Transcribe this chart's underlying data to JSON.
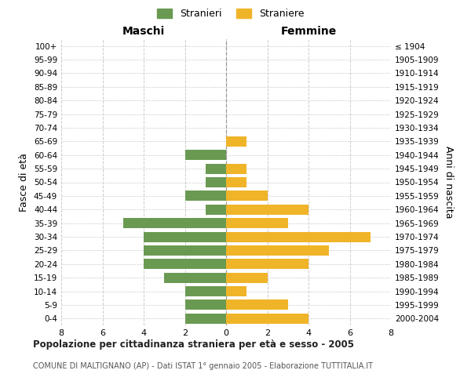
{
  "age_groups": [
    "100+",
    "95-99",
    "90-94",
    "85-89",
    "80-84",
    "75-79",
    "70-74",
    "65-69",
    "60-64",
    "55-59",
    "50-54",
    "45-49",
    "40-44",
    "35-39",
    "30-34",
    "25-29",
    "20-24",
    "15-19",
    "10-14",
    "5-9",
    "0-4"
  ],
  "birth_years": [
    "≤ 1904",
    "1905-1909",
    "1910-1914",
    "1915-1919",
    "1920-1924",
    "1925-1929",
    "1930-1934",
    "1935-1939",
    "1940-1944",
    "1945-1949",
    "1950-1954",
    "1955-1959",
    "1960-1964",
    "1965-1969",
    "1970-1974",
    "1975-1979",
    "1980-1984",
    "1985-1989",
    "1990-1994",
    "1995-1999",
    "2000-2004"
  ],
  "males": [
    0,
    0,
    0,
    0,
    0,
    0,
    0,
    0,
    2,
    1,
    1,
    2,
    1,
    5,
    4,
    4,
    4,
    3,
    2,
    2,
    2
  ],
  "females": [
    0,
    0,
    0,
    0,
    0,
    0,
    0,
    1,
    0,
    1,
    1,
    2,
    4,
    3,
    7,
    5,
    4,
    2,
    1,
    3,
    4
  ],
  "male_color": "#6a9a52",
  "female_color": "#f0b429",
  "background_color": "#ffffff",
  "grid_color": "#cccccc",
  "center_line_color": "#999999",
  "title": "Popolazione per cittadinanza straniera per età e sesso - 2005",
  "subtitle": "COMUNE DI MALTIGNANO (AP) - Dati ISTAT 1° gennaio 2005 - Elaborazione TUTTITALIA.IT",
  "ylabel_left": "Fasce di età",
  "ylabel_right": "Anni di nascita",
  "header_left": "Maschi",
  "header_right": "Femmine",
  "xlim": 8,
  "legend_stranieri": "Stranieri",
  "legend_straniere": "Straniere"
}
